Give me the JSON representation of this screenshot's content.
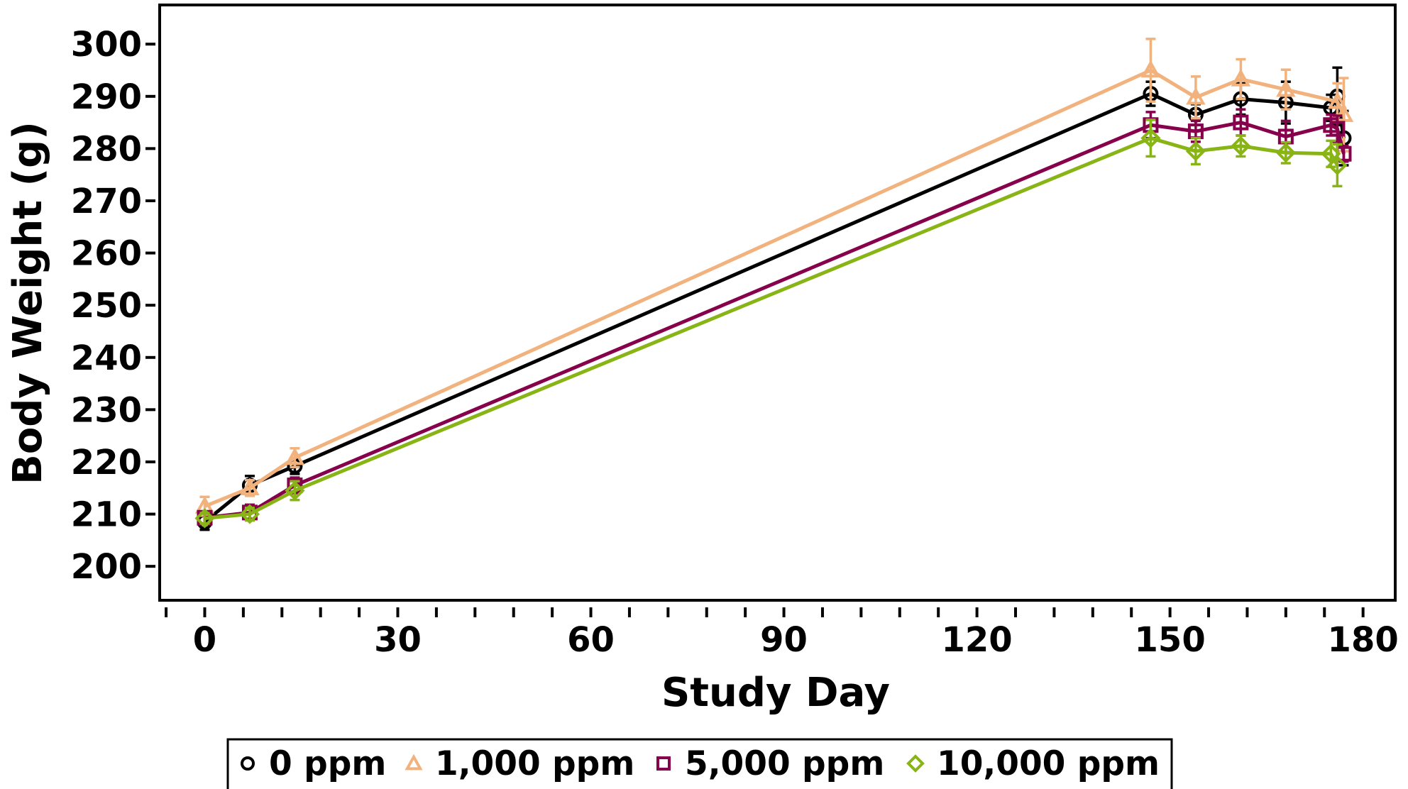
{
  "chart_data": {
    "type": "line",
    "xlabel": "Study Day",
    "ylabel": "Body Weight (g)",
    "xlim": [
      -7,
      185
    ],
    "ylim": [
      193.5,
      307.5
    ],
    "xticks": [
      0,
      30,
      60,
      90,
      120,
      150,
      180
    ],
    "xminor_step": 6,
    "yticks": [
      200,
      210,
      220,
      230,
      240,
      250,
      260,
      270,
      280,
      290,
      300
    ],
    "grid": false,
    "legend_position": "bottom",
    "series": [
      {
        "name": "0 ppm",
        "color": "#000000",
        "marker": "circle",
        "x": [
          0,
          7,
          14,
          147,
          154,
          161,
          168,
          175,
          176,
          177
        ],
        "y": [
          208.5,
          215.5,
          219.2,
          290.5,
          286.5,
          289.5,
          288.8,
          287.8,
          290.0,
          282.0
        ],
        "err": [
          1.5,
          1.8,
          1.5,
          2.3,
          2.0,
          3.0,
          4.0,
          2.5,
          5.5,
          5.2
        ]
      },
      {
        "name": "1,000 ppm",
        "color": "#F2B27D",
        "marker": "triangle",
        "x": [
          0,
          7,
          14,
          147,
          154,
          161,
          168,
          176,
          177
        ],
        "y": [
          211.5,
          215.0,
          220.8,
          295.0,
          289.8,
          293.3,
          291.3,
          289.0,
          286.5
        ],
        "err": [
          1.8,
          1.5,
          1.8,
          6.0,
          4.0,
          3.8,
          3.8,
          3.5,
          7.0
        ]
      },
      {
        "name": "5,000 ppm",
        "color": "#86004C",
        "marker": "square",
        "x": [
          0,
          7,
          14,
          147,
          154,
          161,
          168,
          175,
          176,
          177
        ],
        "y": [
          209.3,
          210.3,
          215.5,
          284.5,
          283.3,
          285.0,
          282.3,
          284.5,
          283.8,
          279.0
        ],
        "err": [
          1.2,
          1.5,
          1.5,
          2.5,
          2.0,
          2.5,
          3.0,
          2.0,
          2.5,
          1.5
        ]
      },
      {
        "name": "10,000 ppm",
        "color": "#88B415",
        "marker": "diamond",
        "x": [
          0,
          7,
          14,
          147,
          154,
          161,
          168,
          175,
          176
        ],
        "y": [
          209.2,
          210.0,
          214.5,
          282.0,
          279.5,
          280.5,
          279.2,
          279.0,
          276.8
        ],
        "err": [
          1.0,
          1.2,
          1.8,
          3.5,
          2.5,
          2.0,
          2.0,
          2.5,
          4.0
        ]
      }
    ]
  }
}
